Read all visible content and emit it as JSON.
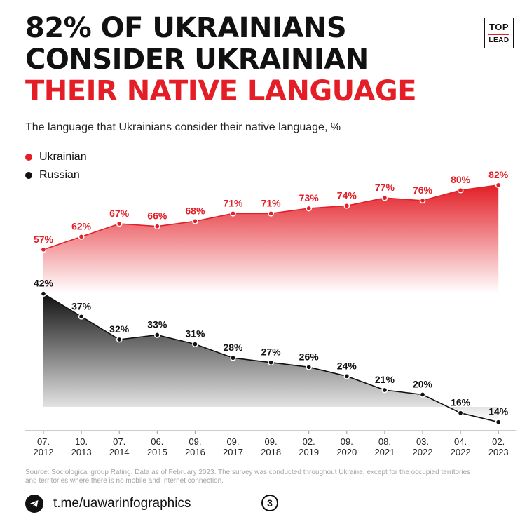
{
  "headline": {
    "line1": "82% OF UKRAINIANS",
    "line2": "CONSIDER UKRAINIAN",
    "line3": "THEIR NATIVE LANGUAGE"
  },
  "logo": {
    "top": "TOP",
    "bottom": "LEAD"
  },
  "colors": {
    "accent": "#e31e26",
    "dark": "#111111"
  },
  "chart_data": {
    "type": "area",
    "title": "The language that Ukrainians consider their native language, %",
    "categories": [
      [
        "07.",
        "2012"
      ],
      [
        "10.",
        "2013"
      ],
      [
        "07.",
        "2014"
      ],
      [
        "06.",
        "2015"
      ],
      [
        "09.",
        "2016"
      ],
      [
        "09.",
        "2017"
      ],
      [
        "09.",
        "2018"
      ],
      [
        "02.",
        "2019"
      ],
      [
        "09.",
        "2020"
      ],
      [
        "08.",
        "2021"
      ],
      [
        "03.",
        "2022"
      ],
      [
        "04.",
        "2022"
      ],
      [
        "02.",
        "2023"
      ]
    ],
    "series": [
      {
        "name": "Ukrainian",
        "color": "#e31e26",
        "values": [
          57,
          62,
          67,
          66,
          68,
          71,
          71,
          73,
          74,
          77,
          76,
          80,
          82
        ]
      },
      {
        "name": "Russian",
        "color": "#111111",
        "values": [
          42,
          37,
          32,
          33,
          31,
          28,
          27,
          26,
          24,
          21,
          20,
          16,
          14
        ]
      }
    ],
    "value_suffix": "%",
    "legend_position": "top-left",
    "grid": false
  },
  "source": "Source: Sociological group Rating. Data as of February 2023. The survey was conducted throughout Ukraine, except for the occupied territories and territories where there is no mobile and Internet connection.",
  "footer": {
    "link": "t.me/uawarinfographics",
    "page": "3",
    "icon": "telegram-icon"
  }
}
